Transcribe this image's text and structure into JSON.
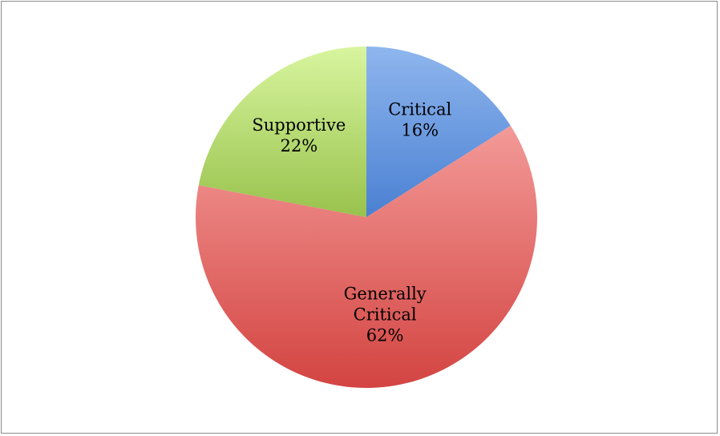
{
  "chart_data": {
    "type": "pie",
    "title": "",
    "start_angle_deg": 0,
    "direction": "clockwise",
    "slices": [
      {
        "label": [
          "Critical"
        ],
        "percent_label": "16%",
        "value": 16,
        "color": "#8fb6ee",
        "color_dark": "#4a80d2"
      },
      {
        "label": [
          "Generally",
          "Critical"
        ],
        "percent_label": "62%",
        "value": 62,
        "color": "#f39a98",
        "color_dark": "#d34441"
      },
      {
        "label": [
          "Supportive"
        ],
        "percent_label": "22%",
        "value": 22,
        "color": "#d8f59f",
        "color_dark": "#98c24c"
      }
    ],
    "legend": "none"
  }
}
